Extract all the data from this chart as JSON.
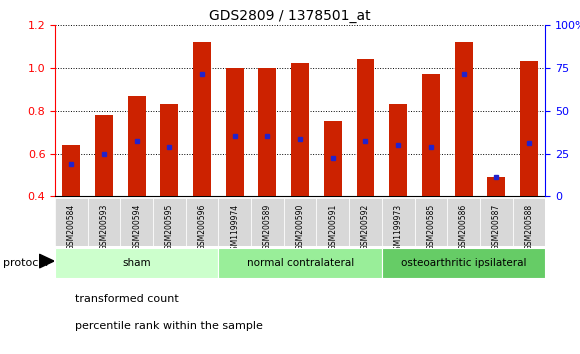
{
  "title": "GDS2809 / 1378501_at",
  "samples": [
    "GSM200584",
    "GSM200593",
    "GSM200594",
    "GSM200595",
    "GSM200596",
    "GSM1199974",
    "GSM200589",
    "GSM200590",
    "GSM200591",
    "GSM200592",
    "GSM1199973",
    "GSM200585",
    "GSM200586",
    "GSM200587",
    "GSM200588"
  ],
  "bar_heights": [
    0.64,
    0.78,
    0.87,
    0.83,
    1.12,
    1.0,
    1.0,
    1.02,
    0.75,
    1.04,
    0.83,
    0.97,
    1.12,
    0.49,
    1.03
  ],
  "blue_dot_y": [
    0.55,
    0.6,
    0.66,
    0.63,
    0.97,
    0.68,
    0.68,
    0.67,
    0.58,
    0.66,
    0.64,
    0.63,
    0.97,
    0.49,
    0.65
  ],
  "bar_color": "#cc2200",
  "dot_color": "#2222cc",
  "ylim_left": [
    0.4,
    1.2
  ],
  "ylim_right": [
    0,
    100
  ],
  "yticks_left": [
    0.4,
    0.6,
    0.8,
    1.0,
    1.2
  ],
  "yticks_right": [
    0,
    25,
    50,
    75,
    100
  ],
  "groups": [
    {
      "label": "sham",
      "start": 0,
      "end": 5,
      "color": "#ccffcc"
    },
    {
      "label": "normal contralateral",
      "start": 5,
      "end": 10,
      "color": "#99ee99"
    },
    {
      "label": "osteoarthritic ipsilateral",
      "start": 10,
      "end": 15,
      "color": "#66cc66"
    }
  ],
  "protocol_label": "protocol",
  "legend_items": [
    {
      "color": "#cc2200",
      "label": "transformed count"
    },
    {
      "color": "#2222cc",
      "label": "percentile rank within the sample"
    }
  ],
  "bar_width": 0.55,
  "xlim": [
    -0.5,
    14.5
  ]
}
